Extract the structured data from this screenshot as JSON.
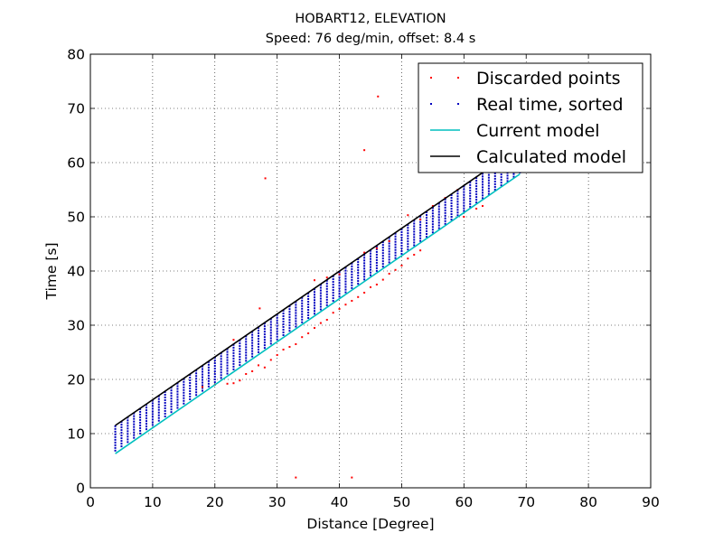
{
  "chart_data": {
    "type": "scatter",
    "title": "HOBART12, ELEVATION",
    "subtitle": "Speed: 76 deg/min, offset: 8.4 s",
    "xlabel": "Distance [Degree]",
    "ylabel": "Time [s]",
    "xlim": [
      0,
      90
    ],
    "ylim": [
      0,
      80
    ],
    "x_ticks": [
      0,
      10,
      20,
      30,
      40,
      50,
      60,
      70,
      80,
      90
    ],
    "y_ticks": [
      0,
      10,
      20,
      30,
      40,
      50,
      60,
      70,
      80
    ],
    "grid": true,
    "legend_position": "top-right",
    "series": [
      {
        "name": "Discarded points",
        "kind": "points",
        "color": "#ff0000",
        "points": [
          [
            46.2,
            72.2
          ],
          [
            44.0,
            62.3
          ],
          [
            28.1,
            57.1
          ],
          [
            27.2,
            33.1
          ],
          [
            33.0,
            1.9
          ],
          [
            42.0,
            1.9
          ],
          [
            18.0,
            18.6
          ],
          [
            20.0,
            19.0
          ],
          [
            22.0,
            19.2
          ],
          [
            23.0,
            19.3
          ],
          [
            23.0,
            27.3
          ],
          [
            24.0,
            19.8
          ],
          [
            25.0,
            21.0
          ],
          [
            26.0,
            21.5
          ],
          [
            27.0,
            22.6
          ],
          [
            28.0,
            22.2
          ],
          [
            29.0,
            23.6
          ],
          [
            30.0,
            24.5
          ],
          [
            31.0,
            25.5
          ],
          [
            32.0,
            26.0
          ],
          [
            33.0,
            26.5
          ],
          [
            34.0,
            27.8
          ],
          [
            35.0,
            28.5
          ],
          [
            36.0,
            29.5
          ],
          [
            37.0,
            30.4
          ],
          [
            38.0,
            31.0
          ],
          [
            39.0,
            32.3
          ],
          [
            40.0,
            33.0
          ],
          [
            41.0,
            33.8
          ],
          [
            42.0,
            34.5
          ],
          [
            43.0,
            35.2
          ],
          [
            44.0,
            36.0
          ],
          [
            45.0,
            37.0
          ],
          [
            46.0,
            37.5
          ],
          [
            47.0,
            38.4
          ],
          [
            48.0,
            39.5
          ],
          [
            49.0,
            40.2
          ],
          [
            50.0,
            41.0
          ],
          [
            51.0,
            42.3
          ],
          [
            52.0,
            43.0
          ],
          [
            53.0,
            43.8
          ],
          [
            51.0,
            50.3
          ],
          [
            53.0,
            49.5
          ],
          [
            44.0,
            43.4
          ],
          [
            36.0,
            38.3
          ],
          [
            38.0,
            38.8
          ],
          [
            40.0,
            39.4
          ],
          [
            46.0,
            44.2
          ],
          [
            48.0,
            45.5
          ],
          [
            55.0,
            52.0
          ],
          [
            57.0,
            53.5
          ],
          [
            59.0,
            55.0
          ],
          [
            60.0,
            50.0
          ],
          [
            62.0,
            51.5
          ],
          [
            63.0,
            52.0
          ]
        ]
      },
      {
        "name": "Real time, sorted",
        "kind": "grid",
        "color": "#0000bf",
        "x_from": 4,
        "x_to": 69,
        "x_step": 1,
        "y_step": 0.5,
        "upper_slope": 0.7895,
        "upper_offset": 8.4,
        "lower_slope": 0.7895,
        "lower_offset": 3.7
      },
      {
        "name": "Current model",
        "kind": "line",
        "color": "#00bfbf",
        "x": [
          4,
          69
        ],
        "y": [
          6.3,
          57.9
        ]
      },
      {
        "name": "Calculated model",
        "kind": "line",
        "color": "#000000",
        "x": [
          4,
          69
        ],
        "y": [
          11.5,
          62.9
        ]
      }
    ]
  }
}
